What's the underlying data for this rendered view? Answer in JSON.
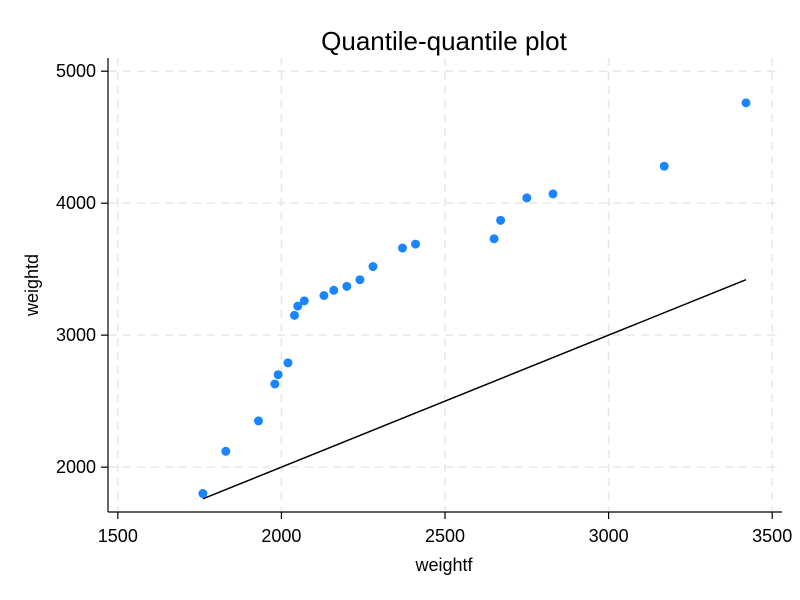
{
  "chart_data": {
    "type": "scatter",
    "title": "Quantile-quantile plot",
    "xlabel": "weightf",
    "ylabel": "weightd",
    "xlim": [
      1470,
      3530
    ],
    "ylim": [
      1660,
      5100
    ],
    "xticks": [
      1500,
      2000,
      2500,
      3000,
      3500
    ],
    "yticks": [
      2000,
      3000,
      4000,
      5000
    ],
    "grid": true,
    "marker_color": "#1a85ff",
    "points": [
      {
        "x": 1760,
        "y": 1800
      },
      {
        "x": 1830,
        "y": 2120
      },
      {
        "x": 1930,
        "y": 2350
      },
      {
        "x": 1980,
        "y": 2630
      },
      {
        "x": 1990,
        "y": 2700
      },
      {
        "x": 2020,
        "y": 2790
      },
      {
        "x": 2040,
        "y": 3150
      },
      {
        "x": 2050,
        "y": 3220
      },
      {
        "x": 2070,
        "y": 3260
      },
      {
        "x": 2130,
        "y": 3300
      },
      {
        "x": 2160,
        "y": 3340
      },
      {
        "x": 2200,
        "y": 3370
      },
      {
        "x": 2240,
        "y": 3420
      },
      {
        "x": 2280,
        "y": 3520
      },
      {
        "x": 2370,
        "y": 3660
      },
      {
        "x": 2410,
        "y": 3690
      },
      {
        "x": 2650,
        "y": 3730
      },
      {
        "x": 2670,
        "y": 3870
      },
      {
        "x": 2750,
        "y": 4040
      },
      {
        "x": 2830,
        "y": 4070
      },
      {
        "x": 3170,
        "y": 4280
      },
      {
        "x": 3420,
        "y": 4760
      }
    ],
    "reference_line": {
      "x": [
        1760,
        3420
      ],
      "y": [
        1760,
        3420
      ]
    }
  }
}
